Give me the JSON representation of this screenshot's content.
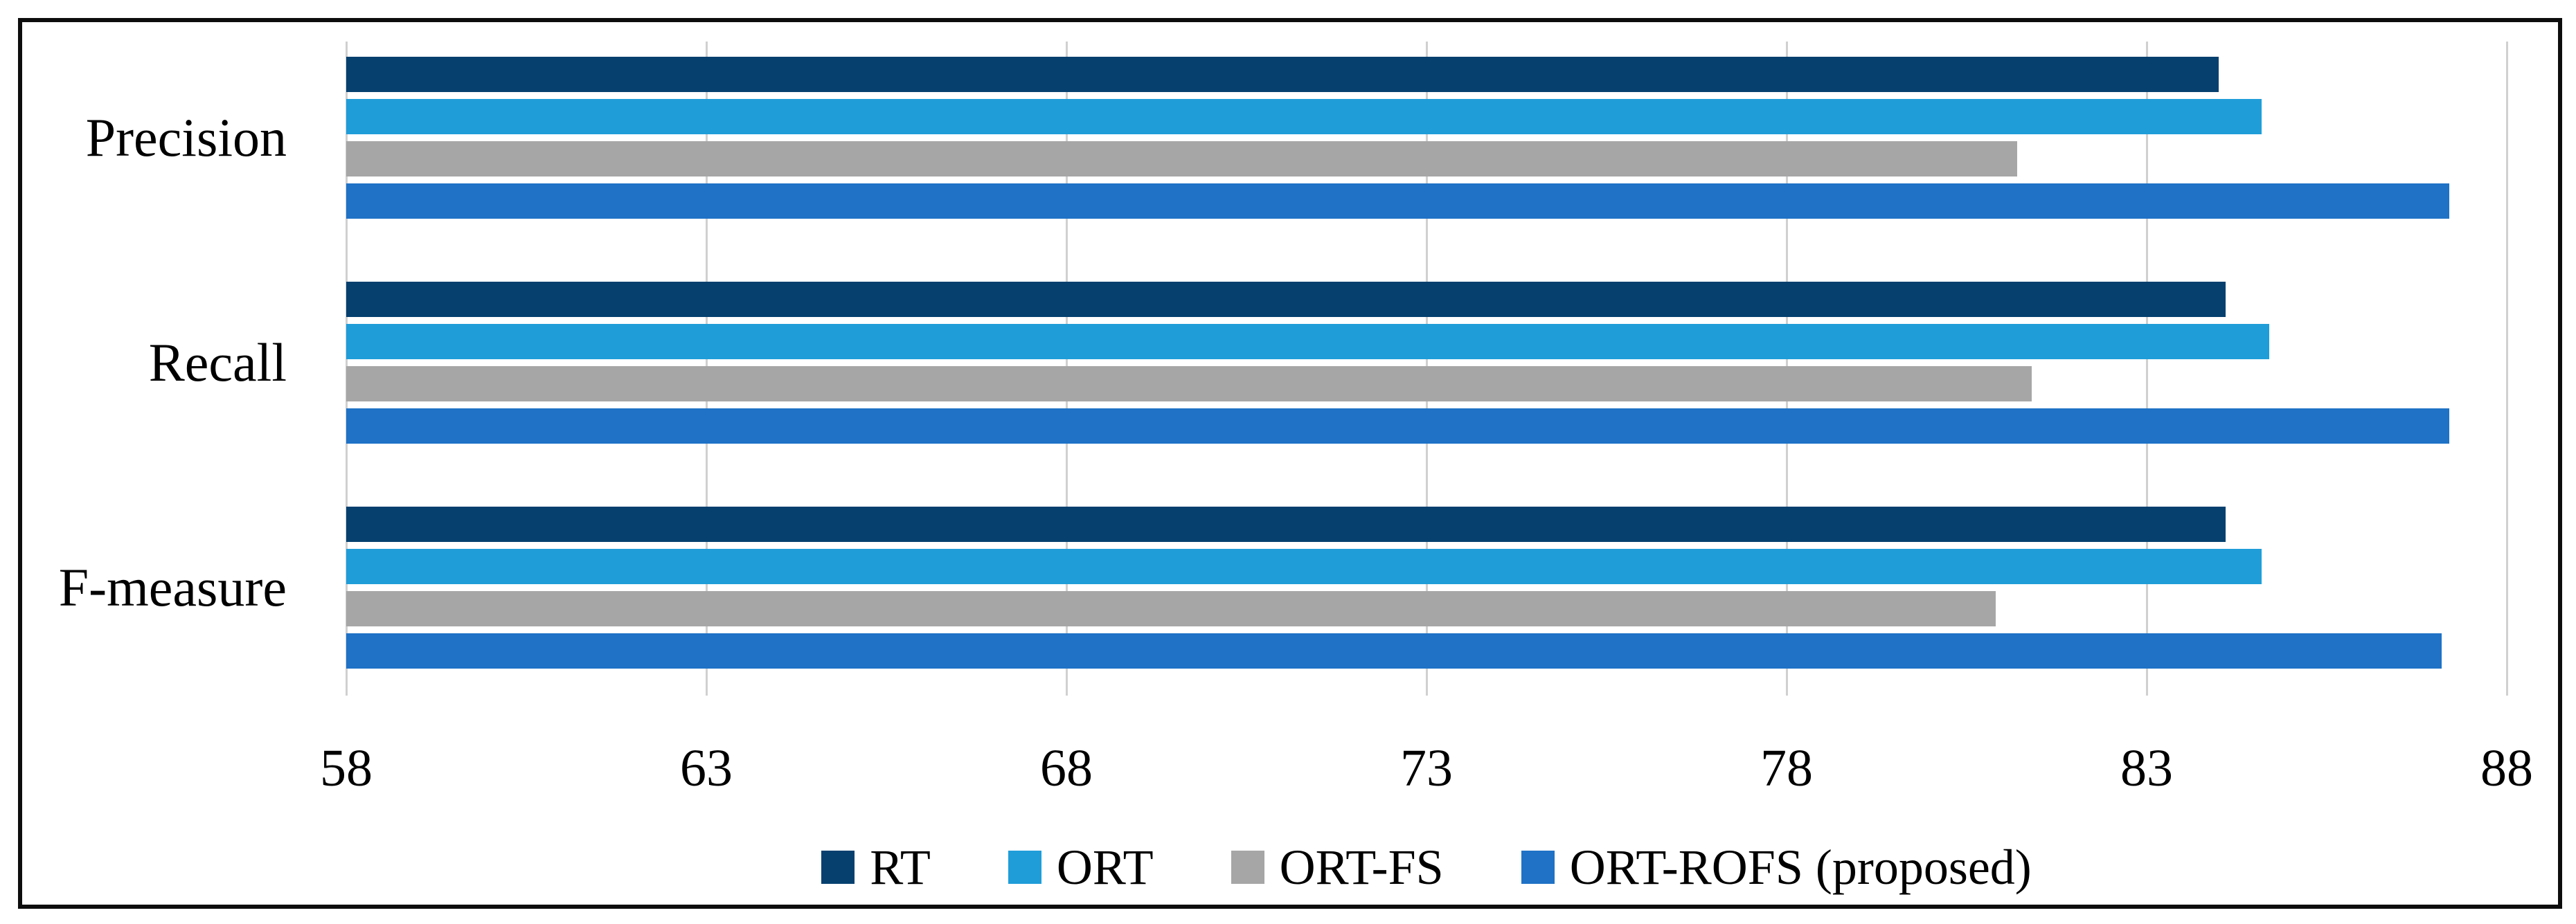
{
  "chart_data": {
    "type": "bar",
    "orientation": "horizontal",
    "title": "",
    "categories": [
      "Precision",
      "Recall",
      "F-measure"
    ],
    "series": [
      {
        "name": "RT",
        "color": "#05406f",
        "values": [
          84.0,
          84.1,
          84.1
        ]
      },
      {
        "name": "ORT",
        "color": "#1f9dd9",
        "values": [
          84.6,
          84.7,
          84.6
        ]
      },
      {
        "name": "ORT-FS",
        "color": "#a6a6a6",
        "values": [
          81.2,
          81.4,
          80.9
        ]
      },
      {
        "name": "ORT-ROFS (proposed)",
        "color": "#1f72c6",
        "values": [
          87.2,
          87.2,
          87.1
        ]
      }
    ],
    "xlim": [
      58,
      88
    ],
    "x_ticks": [
      "58",
      "63",
      "68",
      "73",
      "78",
      "83",
      "88"
    ],
    "grid": true,
    "legend_position": "bottom",
    "colors": {
      "gridline": "#d0d0d0",
      "frame_border": "#0d0d0d",
      "text": "#000000",
      "background": "#ffffff"
    }
  }
}
